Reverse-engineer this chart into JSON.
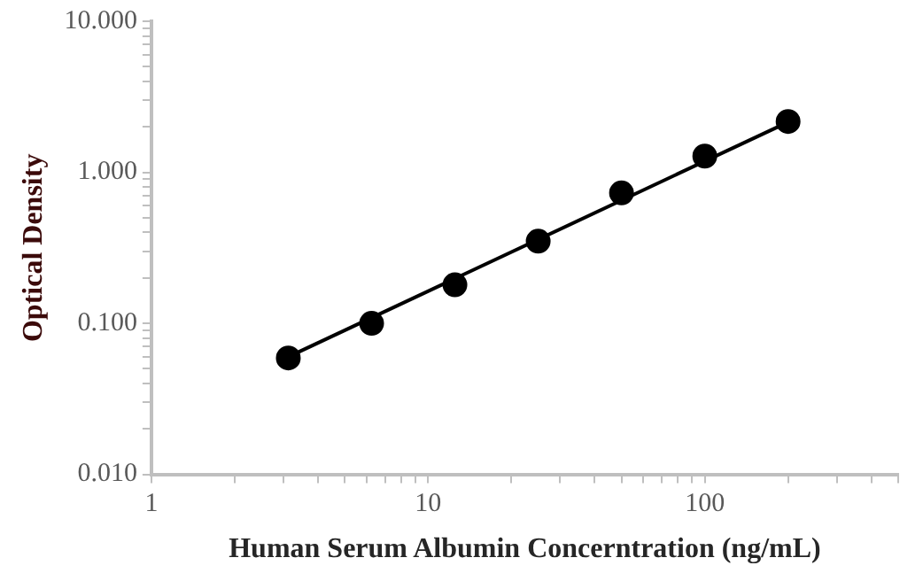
{
  "chart_data": {
    "type": "scatter",
    "xlabel": "Human Serum Albumin Concerntration (ng/mL)",
    "ylabel": "Optical Density",
    "log": "xy",
    "grid": false,
    "legend": false,
    "xlim": [
      1,
      500
    ],
    "ylim": [
      0.01,
      10
    ],
    "xticks": [
      1,
      {
        "value": 2,
        "label": null
      },
      {
        "value": 3,
        "label": null
      },
      {
        "value": 4,
        "label": null
      },
      {
        "value": 5,
        "label": null
      },
      {
        "value": 6,
        "label": null
      },
      {
        "value": 7,
        "label": null
      },
      {
        "value": 8,
        "label": null
      },
      {
        "value": 9,
        "label": null
      },
      10,
      {
        "value": 20,
        "label": null
      },
      {
        "value": 30,
        "label": null
      },
      {
        "value": 40,
        "label": null
      },
      {
        "value": 50,
        "label": null
      },
      {
        "value": 60,
        "label": null
      },
      {
        "value": 70,
        "label": null
      },
      {
        "value": 80,
        "label": null
      },
      {
        "value": 90,
        "label": null
      },
      100,
      {
        "value": 200,
        "label": null
      },
      {
        "value": 300,
        "label": null
      },
      {
        "value": 400,
        "label": null
      },
      {
        "value": 500,
        "label": null
      }
    ],
    "yticks": [
      {
        "value": 0.01,
        "label": "0.010"
      },
      {
        "value": 0.02,
        "label": null
      },
      {
        "value": 0.03,
        "label": null
      },
      {
        "value": 0.04,
        "label": null
      },
      {
        "value": 0.05,
        "label": null
      },
      {
        "value": 0.06,
        "label": null
      },
      {
        "value": 0.07,
        "label": null
      },
      {
        "value": 0.08,
        "label": null
      },
      {
        "value": 0.09,
        "label": null
      },
      {
        "value": 0.1,
        "label": "0.100"
      },
      {
        "value": 0.2,
        "label": null
      },
      {
        "value": 0.3,
        "label": null
      },
      {
        "value": 0.4,
        "label": null
      },
      {
        "value": 0.5,
        "label": null
      },
      {
        "value": 0.6,
        "label": null
      },
      {
        "value": 0.7,
        "label": null
      },
      {
        "value": 0.8,
        "label": null
      },
      {
        "value": 0.9,
        "label": null
      },
      {
        "value": 1,
        "label": "1.000"
      },
      {
        "value": 2,
        "label": null
      },
      {
        "value": 3,
        "label": null
      },
      {
        "value": 4,
        "label": null
      },
      {
        "value": 5,
        "label": null
      },
      {
        "value": 6,
        "label": null
      },
      {
        "value": 7,
        "label": null
      },
      {
        "value": 8,
        "label": null
      },
      {
        "value": 9,
        "label": null
      },
      {
        "value": 10,
        "label": "10.000"
      }
    ],
    "series": [
      {
        "type": "scatter",
        "marker": "circle",
        "color": "#000000",
        "x": [
          3.125,
          6.25,
          12.5,
          25,
          50,
          100,
          200
        ],
        "values": [
          0.059,
          0.1,
          0.18,
          0.35,
          0.73,
          1.28,
          2.17
        ]
      },
      {
        "type": "line",
        "marker": "none",
        "line_style": "solid",
        "color": "#000000",
        "x": [
          3.125,
          200
        ],
        "values": [
          0.06,
          2.15
        ]
      }
    ]
  }
}
